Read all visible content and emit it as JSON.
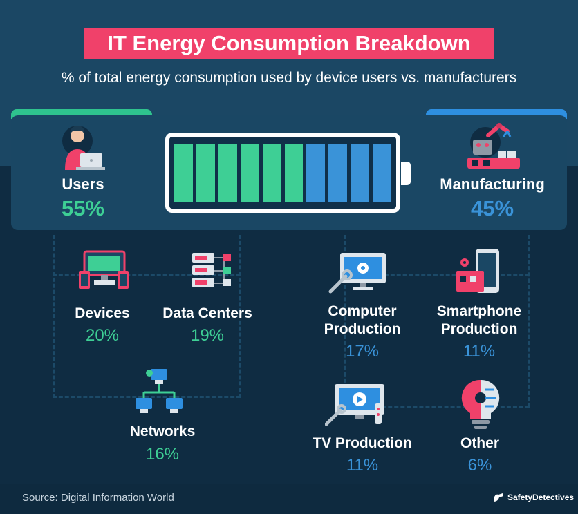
{
  "header": {
    "title": "IT Energy Consumption Breakdown",
    "subtitle": "% of total energy consumption used by device users vs. manufacturers"
  },
  "chart_data": [
    {
      "type": "bar",
      "categories": [
        "Users",
        "Manufacturing"
      ],
      "values": [
        55,
        45
      ],
      "value_labels": [
        "55%",
        "45%"
      ],
      "colors": [
        "#3ecf95",
        "#3a93d8"
      ]
    },
    {
      "type": "table",
      "group": "Users",
      "categories": [
        "Devices",
        "Data Centers",
        "Networks"
      ],
      "values": [
        20,
        19,
        16
      ],
      "value_labels": [
        "20%",
        "19%",
        "16%"
      ]
    },
    {
      "type": "table",
      "group": "Manufacturing",
      "categories": [
        "Computer Production",
        "Smartphone Production",
        "TV Production",
        "Other"
      ],
      "values": [
        17,
        11,
        11,
        6
      ],
      "value_labels": [
        "17%",
        "11%",
        "11%",
        "6%"
      ]
    }
  ],
  "battery": {
    "total_cells": 10,
    "users_cells": 6,
    "manufacturing_cells": 4
  },
  "labels": {
    "users": "Users",
    "users_pct": "55%",
    "manufacturing": "Manufacturing",
    "manufacturing_pct": "45%",
    "devices": "Devices",
    "devices_pct": "20%",
    "data_centers": "Data Centers",
    "data_centers_pct": "19%",
    "networks": "Networks",
    "networks_pct": "16%",
    "computer_production_1": "Computer",
    "computer_production_2": "Production",
    "computer_production_pct": "17%",
    "smartphone_production_1": "Smartphone",
    "smartphone_production_2": "Production",
    "smartphone_production_pct": "11%",
    "tv_production": "TV Production",
    "tv_production_pct": "11%",
    "other": "Other",
    "other_pct": "6%"
  },
  "footer": {
    "source": "Source: Digital Information World",
    "brand": "SafetyDetectives"
  },
  "colors": {
    "accent_pink": "#f0416a",
    "green": "#3ecf95",
    "blue": "#3a93d8",
    "dark": "#0f2c42"
  },
  "icons": [
    "user-laptop-icon",
    "robot-arm-icon",
    "devices-icon",
    "server-icon",
    "network-icon",
    "computer-gear-icon",
    "smartphone-icon",
    "tv-icon",
    "lightbulb-brain-icon"
  ]
}
